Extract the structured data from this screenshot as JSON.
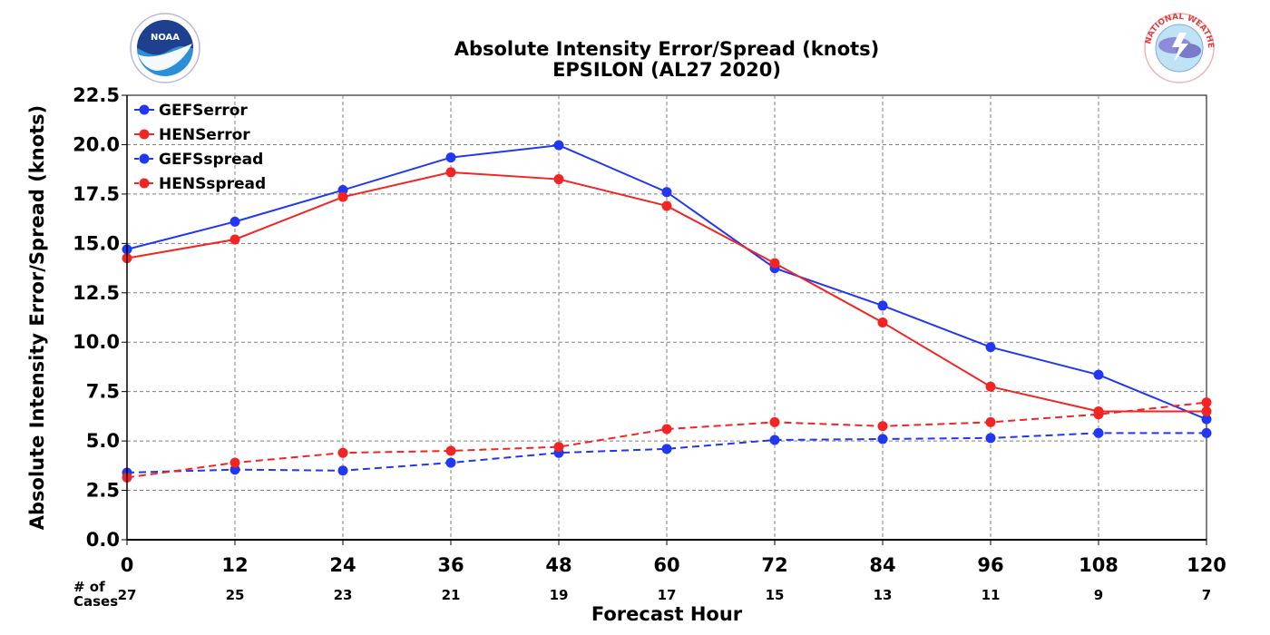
{
  "chart_data": {
    "type": "line",
    "title": "Absolute Intensity Error/Spread (knots)",
    "subtitle": "EPSILON (AL27 2020)",
    "xlabel": "Forecast Hour",
    "ylabel": "Absolute Intensity Error/Spread (knots)",
    "x": [
      0,
      12,
      24,
      36,
      48,
      60,
      72,
      84,
      96,
      108,
      120
    ],
    "xlim": [
      0,
      120
    ],
    "ylim": [
      0,
      22.5
    ],
    "yticks": [
      "0.0",
      "2.5",
      "5.0",
      "7.5",
      "10.0",
      "12.5",
      "15.0",
      "17.5",
      "20.0",
      "22.5"
    ],
    "grid": true,
    "legend_position": "top-left",
    "cases_label": "# of\nCases",
    "cases": [
      27,
      25,
      23,
      21,
      19,
      17,
      15,
      13,
      11,
      9,
      7
    ],
    "series": [
      {
        "name": "GEFSerror",
        "color": "#2137f2",
        "style": "solid",
        "values": [
          14.7,
          16.1,
          17.7,
          19.35,
          19.97,
          17.6,
          13.75,
          11.85,
          9.75,
          8.35,
          6.1
        ]
      },
      {
        "name": "HENSerror",
        "color": "#f22424",
        "style": "solid",
        "values": [
          14.25,
          15.2,
          17.35,
          18.6,
          18.25,
          16.9,
          14.0,
          11.0,
          7.75,
          6.5,
          6.5
        ]
      },
      {
        "name": "GEFSspread",
        "color": "#2137f2",
        "style": "dashed",
        "values": [
          3.4,
          3.55,
          3.5,
          3.9,
          4.4,
          4.6,
          5.05,
          5.1,
          5.15,
          5.4,
          5.4
        ]
      },
      {
        "name": "HENSspread",
        "color": "#f22424",
        "style": "dashed",
        "values": [
          3.15,
          3.9,
          4.4,
          4.5,
          4.7,
          5.6,
          5.95,
          5.75,
          5.95,
          6.35,
          6.95
        ]
      }
    ]
  },
  "logos": {
    "left": {
      "name": "NOAA",
      "color": "#1a5aa0"
    },
    "right": {
      "name": "NATIONAL WEATHER SERVICE",
      "color": "#e04040"
    }
  }
}
